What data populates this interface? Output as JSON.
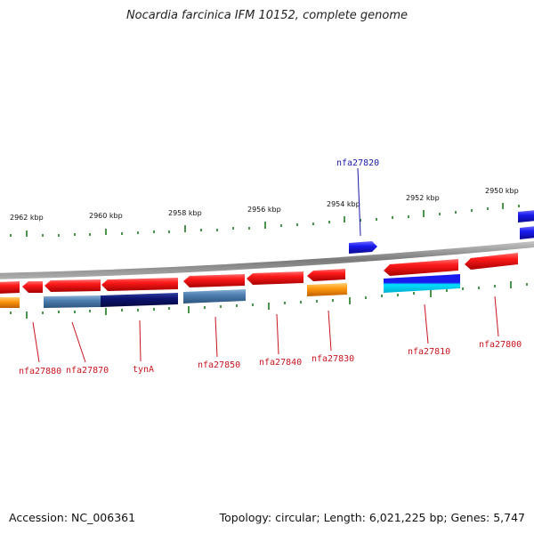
{
  "title": "Nocardia farcinica IFM 10152, complete genome",
  "footer": {
    "accession": "Accession: NC_006361",
    "summary": "Topology: circular; Length: 6,021,225 bp; Genes: 5,747"
  },
  "scale_labels": [
    "2962 kbp",
    "2960 kbp",
    "2958 kbp",
    "2956 kbp",
    "2954 kbp",
    "2952 kbp",
    "2950 kbp"
  ],
  "gene_labels": [
    {
      "id": "nfa27820",
      "color": "#1a1aa8"
    },
    {
      "id": "nfa27880",
      "color": "#c8141e"
    },
    {
      "id": "nfa27870",
      "color": "#c8141e"
    },
    {
      "id": "tynA",
      "color": "#c8141e"
    },
    {
      "id": "nfa27850",
      "color": "#c8141e"
    },
    {
      "id": "nfa27840",
      "color": "#c8141e"
    },
    {
      "id": "nfa27830",
      "color": "#c8141e"
    },
    {
      "id": "nfa27810",
      "color": "#c8141e"
    },
    {
      "id": "nfa27800",
      "color": "#c8141e"
    }
  ],
  "colors": {
    "backbone": "#8a8a8a",
    "gene_red": "#e8121a",
    "gene_blue": "#1a1ad8",
    "cog_orange": "#f59a10",
    "cog_steel": "#4f7fb0",
    "cog_navy": "#0c1470",
    "cog_cyan": "#00d8f0",
    "tick_green": "#1e7a1e"
  }
}
